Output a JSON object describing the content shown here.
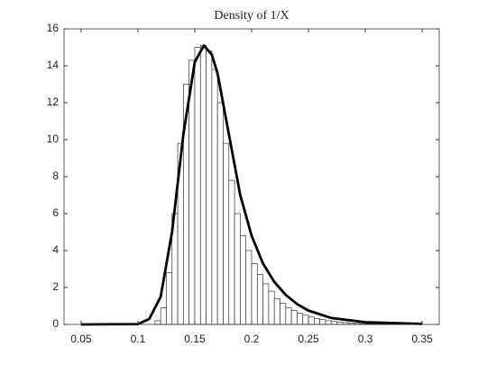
{
  "chart_data": {
    "type": "histogram",
    "title": "Density of 1/X",
    "bins": [
      0.05,
      0.055,
      0.06,
      0.065,
      0.07,
      0.075,
      0.08,
      0.085,
      0.09,
      0.095,
      0.1,
      0.105,
      0.11,
      0.115,
      0.12,
      0.125,
      0.13,
      0.135,
      0.14,
      0.145,
      0.15,
      0.155,
      0.16,
      0.165,
      0.17,
      0.175,
      0.18,
      0.185,
      0.19,
      0.195,
      0.2,
      0.205,
      0.21,
      0.215,
      0.22,
      0.225,
      0.23,
      0.235,
      0.24,
      0.245,
      0.25,
      0.255,
      0.26,
      0.265,
      0.27,
      0.275,
      0.28,
      0.285,
      0.29,
      0.295,
      0.3,
      0.305,
      0.31,
      0.315,
      0.32,
      0.325,
      0.33,
      0.335,
      0.34,
      0.345,
      0.35
    ],
    "values": [
      0,
      0,
      0,
      0,
      0,
      0,
      0,
      0,
      0,
      0,
      0,
      0,
      0,
      0.2,
      0.9,
      2.8,
      6.0,
      9.8,
      13.0,
      14.3,
      15.0,
      15.1,
      14.8,
      13.8,
      12.0,
      9.8,
      7.8,
      6.0,
      4.8,
      4.0,
      3.3,
      2.7,
      2.2,
      1.8,
      1.4,
      1.15,
      0.9,
      0.75,
      0.6,
      0.5,
      0.4,
      0.32,
      0.26,
      0.2,
      0.16,
      0.13,
      0.1,
      0.08,
      0.06,
      0.05,
      0.04,
      0.03,
      0.03,
      0.02,
      0.02,
      0.01,
      0.01,
      0.01,
      0.01,
      0.01
    ],
    "color": "#ffffff",
    "edgecolor": "#333333",
    "curve": {
      "x": [
        0.05,
        0.1,
        0.11,
        0.12,
        0.13,
        0.14,
        0.15,
        0.158,
        0.165,
        0.17,
        0.18,
        0.19,
        0.2,
        0.21,
        0.22,
        0.23,
        0.24,
        0.25,
        0.27,
        0.3,
        0.35
      ],
      "values": [
        0,
        0.02,
        0.3,
        1.5,
        5.0,
        10.3,
        14.2,
        15.1,
        14.6,
        13.6,
        10.3,
        7.0,
        4.8,
        3.3,
        2.3,
        1.6,
        1.1,
        0.75,
        0.35,
        0.12,
        0.03
      ],
      "color": "#000000"
    },
    "xlim": [
      0.035,
      0.365
    ],
    "xticks": [
      0.05,
      0.1,
      0.15,
      0.2,
      0.25,
      0.3,
      0.35
    ],
    "ylim": [
      0,
      16
    ],
    "yticks": [
      0,
      2,
      4,
      6,
      8,
      10,
      12,
      14,
      16
    ]
  }
}
